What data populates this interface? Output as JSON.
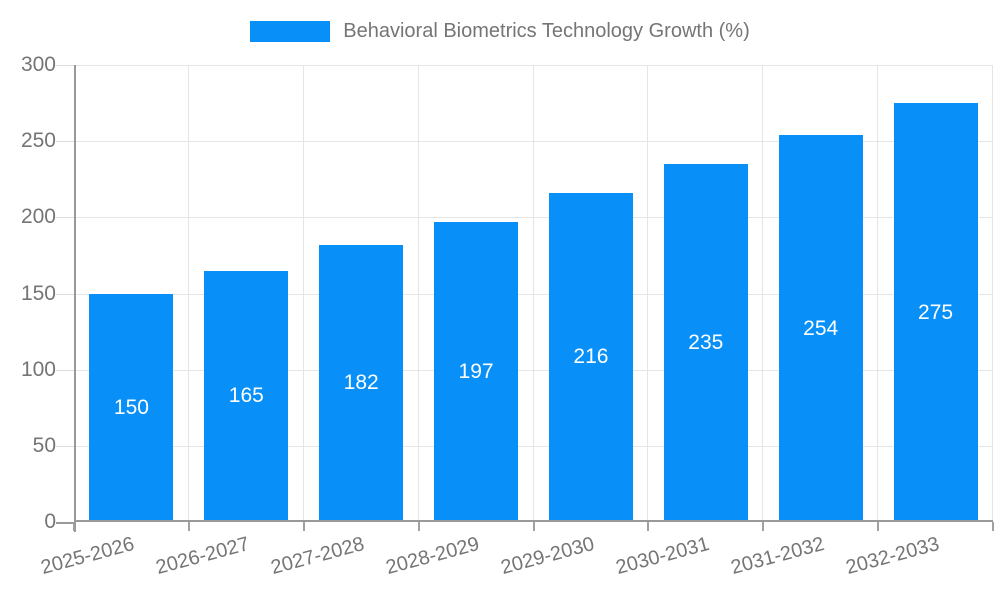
{
  "legend": {
    "label": "Behavioral Biometrics Technology Growth (%)"
  },
  "colors": {
    "bar": "#0890f8",
    "grid": "#e5e5e5",
    "axis": "#999999",
    "text": "#757575",
    "bar_label": "#ffffff",
    "background": "#ffffff"
  },
  "chart_data": {
    "type": "bar",
    "title": "Behavioral Biometrics Technology Growth (%)",
    "series_name": "Behavioral Biometrics Technology Growth (%)",
    "categories": [
      "2025-2026",
      "2026-2027",
      "2027-2028",
      "2028-2029",
      "2029-2030",
      "2030-2031",
      "2031-2032",
      "2032-2033"
    ],
    "values": [
      150,
      165,
      182,
      197,
      216,
      235,
      254,
      275
    ],
    "xlabel": "",
    "ylabel": "",
    "ylim": [
      0,
      300
    ],
    "y_ticks": [
      0,
      50,
      100,
      150,
      200,
      250,
      300
    ],
    "grid": true,
    "legend_position": "top",
    "bar_labels_shown": true
  }
}
